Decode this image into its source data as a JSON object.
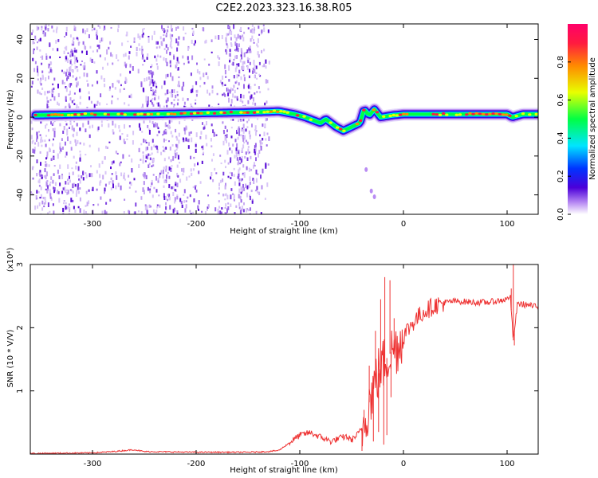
{
  "title": "C2E2.2023.323.16.38.R05",
  "chart_data": [
    {
      "type": "heatmap",
      "xlabel": "Height of straight line (km)",
      "ylabel": "Frequency (Hz)",
      "xlim": [
        -360,
        130
      ],
      "ylim": [
        -50,
        48
      ],
      "xticks": [
        -300,
        -200,
        -100,
        0,
        100
      ],
      "yticks": [
        -40,
        -20,
        0,
        20,
        40
      ],
      "colorbar": {
        "label": "Normalized spectral amplitude",
        "range": [
          0,
          1
        ],
        "ticks": [
          "0.0",
          "0.2",
          "0.4",
          "0.6",
          "0.8"
        ],
        "colors": [
          "#ffffff",
          "#b98cf3",
          "#4b00d9",
          "#0033ff",
          "#00e5ff",
          "#00ff44",
          "#e8ff00",
          "#ff8a00",
          "#ff1a40",
          "#ff006a"
        ]
      },
      "ridge": {
        "x": [
          -355,
          -300,
          -250,
          -200,
          -150,
          -120,
          -105,
          -95,
          -85,
          -80,
          -75,
          -65,
          -58,
          -50,
          -42,
          -38,
          -33,
          -28,
          -22,
          -10,
          0,
          20,
          50,
          80,
          100,
          105,
          115,
          130
        ],
        "y": [
          1,
          1.5,
          1.5,
          2,
          2.5,
          3,
          1.5,
          0,
          -2,
          -3,
          -1,
          -5,
          -7,
          -5,
          -3,
          4,
          1,
          4,
          0,
          1,
          1.5,
          1.5,
          1.5,
          1.5,
          1.5,
          0,
          1.5,
          1.5
        ]
      },
      "noise_bands": [
        [
          -360,
          -130
        ]
      ],
      "stray_points": [
        {
          "x": -36,
          "y": -27
        },
        {
          "x": -31,
          "y": -38
        },
        {
          "x": -28,
          "y": -41
        }
      ]
    },
    {
      "type": "line",
      "xlabel": "Height of straight line (km)",
      "ylabel": "SNR (10 * V/V)",
      "y_multiplier": "(x10⁴)",
      "xlim": [
        -360,
        130
      ],
      "ylim": [
        0,
        3
      ],
      "xticks": [
        -300,
        -200,
        -100,
        0,
        100
      ],
      "yticks": [
        1,
        2,
        3
      ],
      "color": "#ee3333",
      "x": [
        -360,
        -300,
        -280,
        -260,
        -250,
        -200,
        -150,
        -130,
        -120,
        -110,
        -100,
        -90,
        -80,
        -70,
        -60,
        -55,
        -50,
        -45,
        -40,
        -35,
        -30,
        -25,
        -20,
        -15,
        -10,
        -5,
        0,
        10,
        20,
        30,
        40,
        50,
        60,
        70,
        80,
        90,
        100,
        103,
        106,
        110,
        120,
        130
      ],
      "y": [
        0.01,
        0.02,
        0.04,
        0.07,
        0.04,
        0.03,
        0.03,
        0.04,
        0.06,
        0.18,
        0.3,
        0.34,
        0.27,
        0.2,
        0.26,
        0.28,
        0.22,
        0.3,
        0.4,
        0.7,
        1.0,
        1.25,
        1.4,
        1.55,
        1.65,
        1.72,
        1.88,
        2.1,
        2.26,
        2.35,
        2.4,
        2.42,
        2.41,
        2.4,
        2.4,
        2.42,
        2.45,
        2.52,
        1.8,
        2.38,
        2.36,
        2.32
      ],
      "spikes": [
        {
          "x": -18,
          "y": 2.8
        },
        {
          "x": -13,
          "y": 2.75
        },
        {
          "x": -22,
          "y": 2.45
        },
        {
          "x": -9,
          "y": 2.15
        },
        {
          "x": -27,
          "y": 1.95
        },
        {
          "x": -33,
          "y": 1.4
        },
        {
          "x": -38,
          "y": 0.7
        },
        {
          "x": 106,
          "y": 3.0
        },
        {
          "x": 104,
          "y": 2.62
        }
      ],
      "dips": [
        {
          "x": -19,
          "y": 0.15
        },
        {
          "x": -16,
          "y": 0.3
        },
        {
          "x": -24,
          "y": 0.35
        },
        {
          "x": -29,
          "y": 0.2
        },
        {
          "x": -12,
          "y": 0.9
        },
        {
          "x": -40,
          "y": 0.05
        },
        {
          "x": 107,
          "y": 1.72
        }
      ]
    }
  ]
}
